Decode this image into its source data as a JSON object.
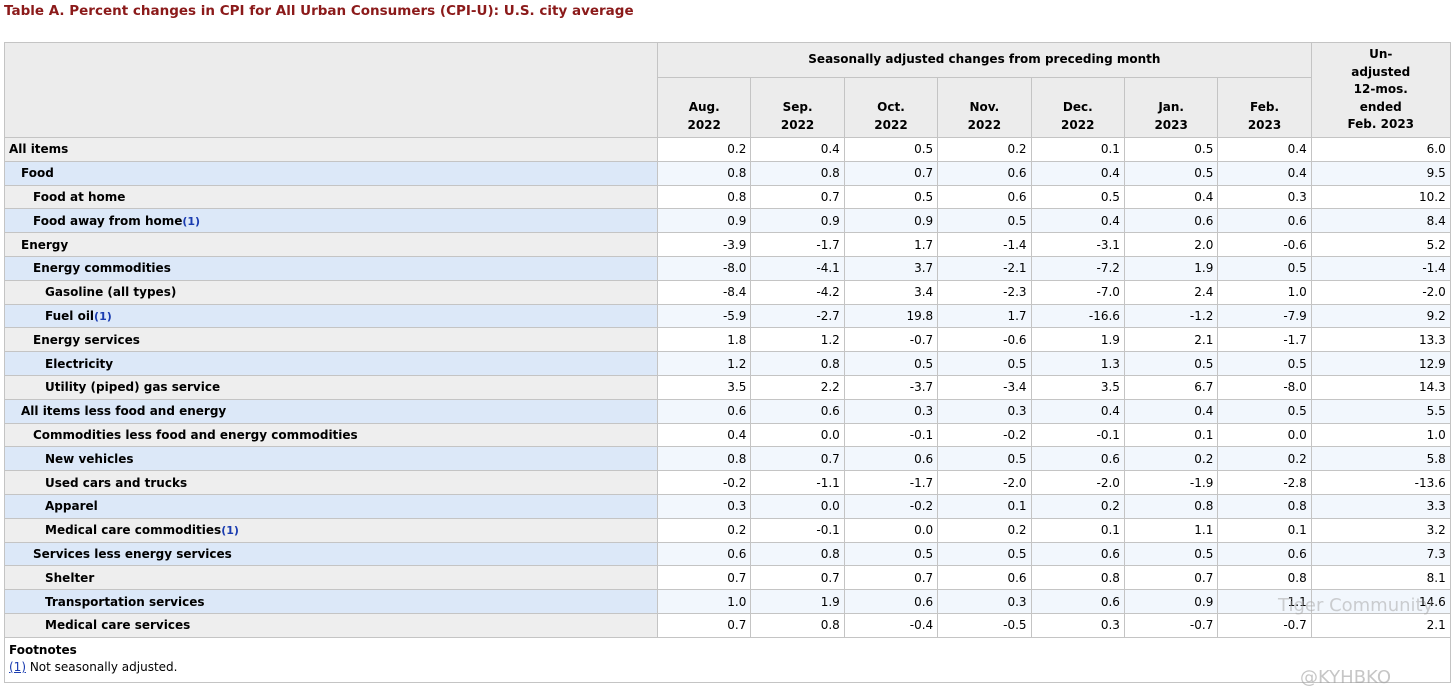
{
  "title": "Table A. Percent changes in CPI for All Urban Consumers (CPI-U): U.S. city average",
  "table": {
    "group_header": "Seasonally adjusted changes from preceding month",
    "columns": [
      [
        "Aug.",
        "2022"
      ],
      [
        "Sep.",
        "2022"
      ],
      [
        "Oct.",
        "2022"
      ],
      [
        "Nov.",
        "2022"
      ],
      [
        "Dec.",
        "2022"
      ],
      [
        "Jan.",
        "2023"
      ],
      [
        "Feb.",
        "2023"
      ]
    ],
    "last_column": [
      "Un-",
      "adjusted",
      "12-mos.",
      "ended",
      "Feb. 2023"
    ],
    "rows": [
      {
        "label": "All items",
        "values": [
          "0.2",
          "0.4",
          "0.5",
          "0.2",
          "0.1",
          "0.5",
          "0.4",
          "6.0"
        ]
      },
      {
        "label": "Food",
        "values": [
          "0.8",
          "0.8",
          "0.7",
          "0.6",
          "0.4",
          "0.5",
          "0.4",
          "9.5"
        ]
      },
      {
        "label": "Food at home",
        "values": [
          "0.8",
          "0.7",
          "0.5",
          "0.6",
          "0.5",
          "0.4",
          "0.3",
          "10.2"
        ]
      },
      {
        "label": "Food away from home",
        "note": "(1)",
        "values": [
          "0.9",
          "0.9",
          "0.9",
          "0.5",
          "0.4",
          "0.6",
          "0.6",
          "8.4"
        ]
      },
      {
        "label": "Energy",
        "values": [
          "-3.9",
          "-1.7",
          "1.7",
          "-1.4",
          "-3.1",
          "2.0",
          "-0.6",
          "5.2"
        ]
      },
      {
        "label": "Energy commodities",
        "values": [
          "-8.0",
          "-4.1",
          "3.7",
          "-2.1",
          "-7.2",
          "1.9",
          "0.5",
          "-1.4"
        ]
      },
      {
        "label": "Gasoline (all types)",
        "values": [
          "-8.4",
          "-4.2",
          "3.4",
          "-2.3",
          "-7.0",
          "2.4",
          "1.0",
          "-2.0"
        ]
      },
      {
        "label": "Fuel oil",
        "note": "(1)",
        "values": [
          "-5.9",
          "-2.7",
          "19.8",
          "1.7",
          "-16.6",
          "-1.2",
          "-7.9",
          "9.2"
        ]
      },
      {
        "label": "Energy services",
        "values": [
          "1.8",
          "1.2",
          "-0.7",
          "-0.6",
          "1.9",
          "2.1",
          "-1.7",
          "13.3"
        ]
      },
      {
        "label": "Electricity",
        "values": [
          "1.2",
          "0.8",
          "0.5",
          "0.5",
          "1.3",
          "0.5",
          "0.5",
          "12.9"
        ]
      },
      {
        "label": "Utility (piped) gas service",
        "values": [
          "3.5",
          "2.2",
          "-3.7",
          "-3.4",
          "3.5",
          "6.7",
          "-8.0",
          "14.3"
        ]
      },
      {
        "label": "All items less food and energy",
        "values": [
          "0.6",
          "0.6",
          "0.3",
          "0.3",
          "0.4",
          "0.4",
          "0.5",
          "5.5"
        ]
      },
      {
        "label": "Commodities less food and energy commodities",
        "values": [
          "0.4",
          "0.0",
          "-0.1",
          "-0.2",
          "-0.1",
          "0.1",
          "0.0",
          "1.0"
        ]
      },
      {
        "label": "New vehicles",
        "values": [
          "0.8",
          "0.7",
          "0.6",
          "0.5",
          "0.6",
          "0.2",
          "0.2",
          "5.8"
        ]
      },
      {
        "label": "Used cars and trucks",
        "values": [
          "-0.2",
          "-1.1",
          "-1.7",
          "-2.0",
          "-2.0",
          "-1.9",
          "-2.8",
          "-13.6"
        ]
      },
      {
        "label": "Apparel",
        "values": [
          "0.3",
          "0.0",
          "-0.2",
          "0.1",
          "0.2",
          "0.8",
          "0.8",
          "3.3"
        ]
      },
      {
        "label": "Medical care commodities",
        "note": "(1)",
        "values": [
          "0.2",
          "-0.1",
          "0.0",
          "0.2",
          "0.1",
          "1.1",
          "0.1",
          "3.2"
        ]
      },
      {
        "label": "Services less energy services",
        "values": [
          "0.6",
          "0.8",
          "0.5",
          "0.5",
          "0.6",
          "0.5",
          "0.6",
          "7.3"
        ]
      },
      {
        "label": "Shelter",
        "values": [
          "0.7",
          "0.7",
          "0.7",
          "0.6",
          "0.8",
          "0.7",
          "0.8",
          "8.1"
        ]
      },
      {
        "label": "Transportation services",
        "values": [
          "1.0",
          "1.9",
          "0.6",
          "0.3",
          "0.6",
          "0.9",
          "1.1",
          "14.6"
        ]
      },
      {
        "label": "Medical care services",
        "values": [
          "0.7",
          "0.8",
          "-0.4",
          "-0.5",
          "0.3",
          "-0.7",
          "-0.7",
          "2.1"
        ]
      }
    ]
  },
  "footnotes": {
    "heading": "Footnotes",
    "items": [
      {
        "marker": "(1)",
        "text": "Not seasonally adjusted."
      }
    ]
  },
  "watermark": {
    "brand": "Tiger Community",
    "handle": "@KYHBKO"
  }
}
